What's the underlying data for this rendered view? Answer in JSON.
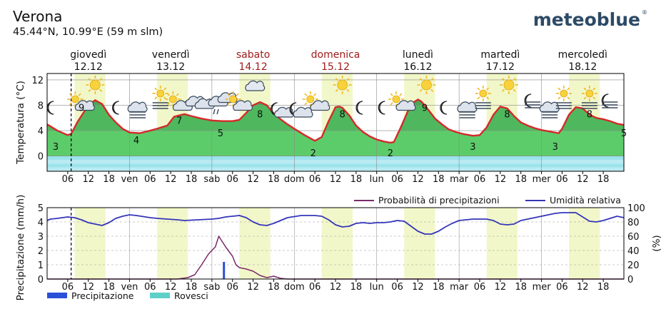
{
  "header": {
    "location": "Verona",
    "coords": "45.44°N, 10.99°E (59 m slm)",
    "brand": "meteoblue"
  },
  "days": [
    {
      "name": "giovedì",
      "date": "12.12",
      "weekend": false
    },
    {
      "name": "venerdì",
      "date": "13.12",
      "weekend": false
    },
    {
      "name": "sabato",
      "date": "14.12",
      "weekend": true
    },
    {
      "name": "domenica",
      "date": "15.12",
      "weekend": true
    },
    {
      "name": "lunedì",
      "date": "16.12",
      "weekend": false
    },
    {
      "name": "martedì",
      "date": "17.12",
      "weekend": false
    },
    {
      "name": "mercoledì",
      "date": "18.12",
      "weekend": false
    }
  ],
  "colors": {
    "weekday": "#111111",
    "weekend": "#a01b1b",
    "temperature_line": "#d42a2a",
    "precip_prob_line": "#7a2a6a",
    "humidity_line": "#3535b8",
    "precipitation_bar": "#2a4fd8",
    "showers_bar": "#5fd0c8",
    "day_band": "#f2f7c9",
    "brand": "#2c4a66"
  },
  "chart_data": [
    {
      "type": "area",
      "id": "temperature",
      "ylabel": "Temperatura (°C)",
      "yticks": [
        0,
        4,
        8,
        12
      ],
      "ylim": [
        -2.4,
        13
      ],
      "x_unit": "hours from 12.12 00:00",
      "xlim": [
        0,
        168
      ],
      "x_ticks": [
        {
          "x": 6,
          "label": "06"
        },
        {
          "x": 12,
          "label": "12"
        },
        {
          "x": 18,
          "label": "18"
        },
        {
          "x": 24,
          "label": "ven"
        },
        {
          "x": 30,
          "label": "06"
        },
        {
          "x": 36,
          "label": "12"
        },
        {
          "x": 42,
          "label": "18"
        },
        {
          "x": 48,
          "label": "sab"
        },
        {
          "x": 54,
          "label": "06"
        },
        {
          "x": 60,
          "label": "12"
        },
        {
          "x": 66,
          "label": "18"
        },
        {
          "x": 72,
          "label": "dom"
        },
        {
          "x": 78,
          "label": "06"
        },
        {
          "x": 84,
          "label": "12"
        },
        {
          "x": 90,
          "label": "18"
        },
        {
          "x": 96,
          "label": "lun"
        },
        {
          "x": 102,
          "label": "06"
        },
        {
          "x": 108,
          "label": "12"
        },
        {
          "x": 114,
          "label": "18"
        },
        {
          "x": 120,
          "label": "mar"
        },
        {
          "x": 126,
          "label": "06"
        },
        {
          "x": 132,
          "label": "12"
        },
        {
          "x": 138,
          "label": "18"
        },
        {
          "x": 144,
          "label": "mer"
        },
        {
          "x": 150,
          "label": "06"
        },
        {
          "x": 156,
          "label": "12"
        },
        {
          "x": 162,
          "label": "18"
        }
      ],
      "day_bands": [
        [
          8,
          17
        ],
        [
          32,
          41
        ],
        [
          56,
          65
        ],
        [
          80,
          89
        ],
        [
          104,
          113
        ],
        [
          128,
          137
        ],
        [
          152,
          161
        ]
      ],
      "now_x": 7,
      "series": [
        {
          "x": [
            0,
            3,
            6,
            7,
            9,
            12,
            14,
            16,
            18,
            20,
            22,
            24,
            27,
            30,
            32,
            35,
            37,
            40,
            42,
            45,
            48,
            51,
            54,
            56,
            58,
            60,
            62,
            64,
            66,
            68,
            70,
            72,
            75,
            78,
            80,
            82,
            84,
            85,
            86,
            88,
            90,
            92,
            94,
            96,
            98,
            100,
            101,
            103,
            106,
            108,
            109,
            111,
            113,
            115,
            117,
            119,
            121,
            124,
            126,
            128,
            130,
            132,
            134,
            136,
            138,
            140,
            142,
            144,
            147,
            149,
            150,
            152,
            154,
            156,
            158,
            160,
            162,
            164,
            166,
            168
          ],
          "values": [
            5.0,
            4.0,
            3.3,
            3.5,
            5.5,
            8.0,
            8.8,
            8.2,
            6.5,
            5.3,
            4.3,
            3.7,
            3.6,
            4.0,
            4.3,
            4.8,
            6.2,
            6.6,
            6.3,
            5.9,
            5.6,
            5.5,
            5.5,
            5.7,
            6.8,
            8.0,
            8.5,
            8.0,
            6.7,
            5.8,
            5.0,
            4.3,
            3.3,
            2.4,
            3.0,
            5.5,
            7.7,
            7.8,
            7.6,
            6.4,
            4.8,
            3.8,
            3.1,
            2.6,
            2.3,
            2.1,
            2.2,
            4.5,
            8.2,
            8.9,
            8.6,
            7.3,
            5.9,
            5.0,
            4.2,
            3.8,
            3.5,
            3.2,
            3.3,
            4.5,
            6.5,
            7.8,
            7.5,
            6.3,
            5.3,
            4.8,
            4.4,
            4.1,
            3.8,
            3.6,
            4.3,
            6.5,
            7.7,
            7.5,
            6.5,
            6.0,
            5.8,
            5.5,
            5.1,
            4.9
          ]
        }
      ],
      "data_labels": [
        {
          "x": 2.5,
          "value": 3
        },
        {
          "x": 10,
          "value": 9
        },
        {
          "x": 26,
          "value": 4
        },
        {
          "x": 38.5,
          "value": 7
        },
        {
          "x": 50.5,
          "value": 5
        },
        {
          "x": 62,
          "value": 8
        },
        {
          "x": 77.5,
          "value": 2
        },
        {
          "x": 86,
          "value": 8
        },
        {
          "x": 100,
          "value": 2
        },
        {
          "x": 110,
          "value": 9
        },
        {
          "x": 124,
          "value": 3
        },
        {
          "x": 134,
          "value": 8
        },
        {
          "x": 148,
          "value": 3
        },
        {
          "x": 158,
          "value": 8
        },
        {
          "x": 168,
          "value": 5
        }
      ],
      "weather_icons": [
        {
          "x": 1.5,
          "type": "moon-icon"
        },
        {
          "x": 9,
          "type": "sun-cloud-icon"
        },
        {
          "x": 14,
          "type": "sun-icon"
        },
        {
          "x": 20.5,
          "type": "moon-icon"
        },
        {
          "x": 26,
          "type": "fog-icon"
        },
        {
          "x": 33,
          "type": "sun-fog-icon"
        },
        {
          "x": 37.5,
          "type": "sun-cloud-icon"
        },
        {
          "x": 43.5,
          "type": "clouds-icon"
        },
        {
          "x": 49.5,
          "type": "rain-clouds-icon"
        },
        {
          "x": 55,
          "type": "sun-cloud-icon"
        },
        {
          "x": 60.5,
          "type": "cloud-icon"
        },
        {
          "x": 67.5,
          "type": "moon-cloud-icon"
        },
        {
          "x": 73,
          "type": "moon-cloud-icon"
        },
        {
          "x": 77.5,
          "type": "sun-cloud-icon"
        },
        {
          "x": 86,
          "type": "sun-icon"
        },
        {
          "x": 91.5,
          "type": "moon-icon"
        },
        {
          "x": 98,
          "type": "moon-icon"
        },
        {
          "x": 102.5,
          "type": "sun-cloud-icon"
        },
        {
          "x": 110.5,
          "type": "sun-icon"
        },
        {
          "x": 116,
          "type": "moon-icon"
        },
        {
          "x": 122,
          "type": "fog-icon"
        },
        {
          "x": 127,
          "type": "sun-fog-icon"
        },
        {
          "x": 134.5,
          "type": "sun-icon"
        },
        {
          "x": 141,
          "type": "moon-fog-icon"
        },
        {
          "x": 146,
          "type": "fog-icon"
        },
        {
          "x": 150.5,
          "type": "sun-fog-icon"
        },
        {
          "x": 158,
          "type": "sun-fog-icon"
        },
        {
          "x": 163.5,
          "type": "moon-fog-icon"
        }
      ]
    },
    {
      "type": "line",
      "id": "precipitation",
      "ylabel": "Precipitazione (mm/h)",
      "y2label": "(%)",
      "yticks": [
        0,
        1,
        2,
        3,
        4,
        5
      ],
      "ylim": [
        0,
        5
      ],
      "y2ticks": [
        0,
        20,
        40,
        60,
        80,
        100
      ],
      "y2lim": [
        0,
        100
      ],
      "grid": true,
      "legend_position": "top-right",
      "legend_top": [
        {
          "name": "Probabilità di precipitazioni",
          "color": "#7a2a6a"
        },
        {
          "name": "Umidità relativa",
          "color": "#3535b8"
        }
      ],
      "legend_bottom": [
        {
          "name": "Precipitazione",
          "color": "#2a4fd8"
        },
        {
          "name": "Rovesci",
          "color": "#5fd0c8"
        }
      ],
      "series": [
        {
          "name": "Umidità relativa",
          "axis": "y2",
          "x": [
            0,
            1,
            3,
            6,
            8,
            10,
            12,
            14,
            16,
            18,
            20,
            22,
            24,
            26,
            30,
            32,
            35,
            38,
            40,
            44,
            48,
            50,
            52,
            54,
            56,
            58,
            60,
            62,
            64,
            66,
            70,
            74,
            78,
            80,
            82,
            84,
            86,
            88,
            90,
            92,
            94,
            96,
            98,
            100,
            102,
            104,
            106,
            108,
            110,
            112,
            114,
            116,
            118,
            120,
            124,
            128,
            130,
            132,
            134,
            136,
            138,
            142,
            144,
            146,
            148,
            150,
            152,
            154,
            156,
            158,
            160,
            162,
            164,
            166,
            168
          ],
          "values": [
            82,
            84,
            85,
            87,
            86,
            83,
            79,
            77,
            75,
            79,
            85,
            88,
            90,
            89,
            86,
            85,
            84,
            83,
            82,
            83,
            84,
            85,
            87,
            88,
            89,
            86,
            80,
            76,
            75,
            78,
            86,
            89,
            89,
            88,
            83,
            76,
            73,
            74,
            78,
            79,
            78,
            79,
            79,
            80,
            82,
            81,
            74,
            67,
            63,
            63,
            67,
            73,
            78,
            82,
            84,
            84,
            82,
            77,
            76,
            77,
            82,
            86,
            88,
            90,
            92,
            93,
            93,
            93,
            87,
            81,
            80,
            82,
            85,
            88,
            86
          ]
        },
        {
          "name": "Probabilità di precipitazioni",
          "axis": "y2",
          "x": [
            0,
            38,
            41,
            43,
            45,
            47,
            49,
            50,
            52,
            54,
            55,
            56,
            58,
            60,
            62,
            64,
            66,
            68,
            70,
            168
          ],
          "values": [
            0,
            0,
            2,
            6,
            20,
            35,
            45,
            60,
            45,
            32,
            20,
            16,
            14,
            11,
            5,
            2,
            4,
            1,
            0,
            0
          ]
        }
      ],
      "bars": [
        {
          "name": "Precipitazione",
          "x": 51.5,
          "value": 1.2
        }
      ]
    }
  ]
}
